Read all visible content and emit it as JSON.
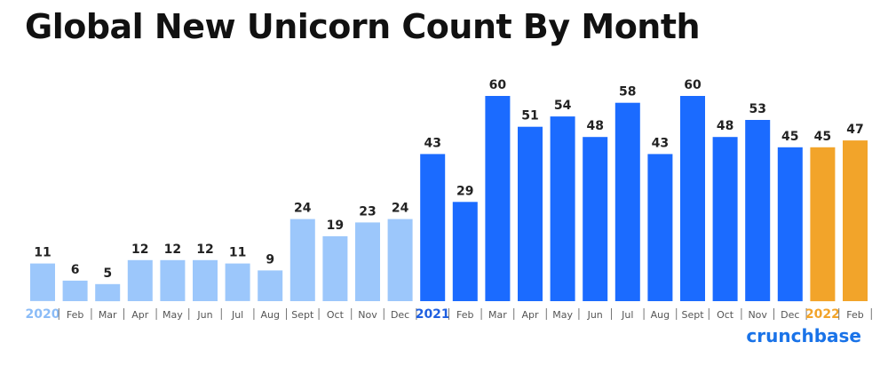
{
  "chart_data": {
    "type": "bar",
    "title": "Global New Unicorn Count By Month",
    "categories": [
      "2020",
      "Feb",
      "Mar",
      "Apr",
      "May",
      "Jun",
      "Jul",
      "Aug",
      "Sept",
      "Oct",
      "Nov",
      "Dec",
      "2021",
      "Feb",
      "Mar",
      "Apr",
      "May",
      "Jun",
      "Jul",
      "Aug",
      "Sept",
      "Oct",
      "Nov",
      "Dec",
      "2022",
      "Feb"
    ],
    "values": [
      11,
      6,
      5,
      12,
      12,
      12,
      11,
      9,
      24,
      19,
      23,
      24,
      43,
      29,
      60,
      51,
      54,
      48,
      58,
      43,
      60,
      48,
      53,
      45,
      45,
      47
    ],
    "groups": [
      0,
      0,
      0,
      0,
      0,
      0,
      0,
      0,
      0,
      0,
      0,
      0,
      1,
      1,
      1,
      1,
      1,
      1,
      1,
      1,
      1,
      1,
      1,
      1,
      2,
      2
    ],
    "year_label_indices": [
      0,
      12,
      24
    ],
    "colors": {
      "2020": "#9cc7fb",
      "2021": "#1b6bff",
      "2022": "#f2a42a",
      "year_2020_text": "#8bbcf7",
      "year_2021_text": "#1f5fe0",
      "year_2022_text": "#f2a42a",
      "label": "#222222",
      "axis_text": "#555555",
      "brand": "#1a73e8"
    },
    "ylim": [
      0,
      60
    ],
    "grid": false,
    "legend": "none"
  },
  "brand": {
    "text": "crunchbase",
    "color": "#1a73e8"
  }
}
